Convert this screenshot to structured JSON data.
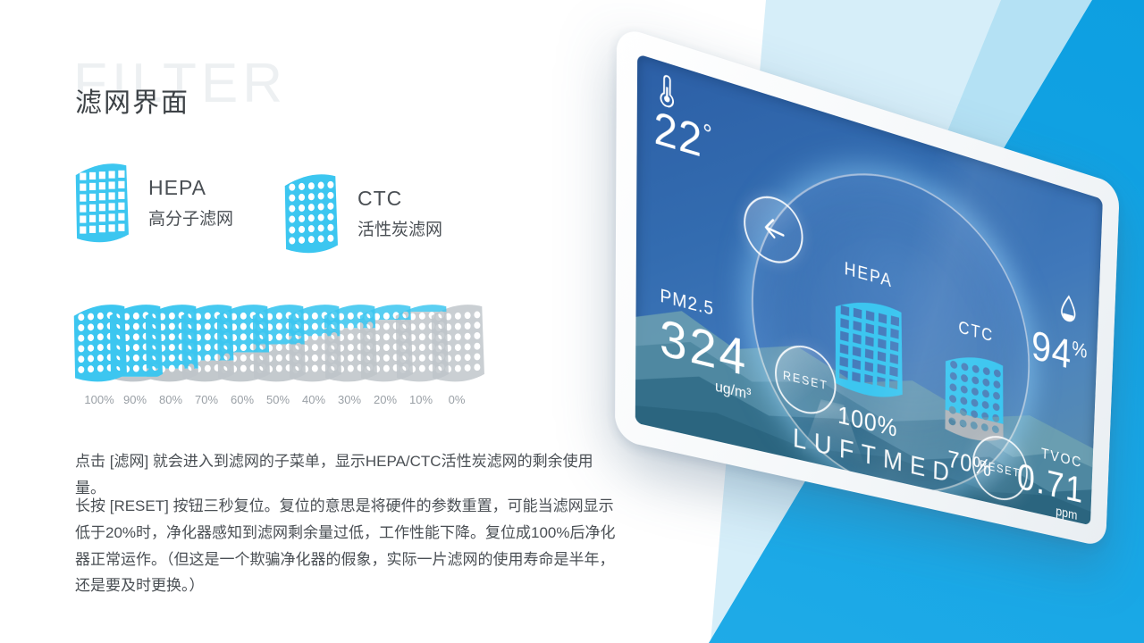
{
  "page": {
    "watermark": "FILTER",
    "title": "滤网界面"
  },
  "legend": {
    "hepa_name": "HEPA",
    "hepa_desc": "高分子滤网",
    "ctc_name": "CTC",
    "ctc_desc": "活性炭滤网"
  },
  "filter_scale": {
    "levels": [
      {
        "label": "100%",
        "fill": 100
      },
      {
        "label": "90%",
        "fill": 90
      },
      {
        "label": "80%",
        "fill": 80
      },
      {
        "label": "70%",
        "fill": 70
      },
      {
        "label": "60%",
        "fill": 60
      },
      {
        "label": "50%",
        "fill": 50
      },
      {
        "label": "40%",
        "fill": 40
      },
      {
        "label": "30%",
        "fill": 30
      },
      {
        "label": "20%",
        "fill": 20
      },
      {
        "label": "10%",
        "fill": 10
      },
      {
        "label": "0%",
        "fill": 0
      }
    ]
  },
  "paragraphs": {
    "p1": "点击 [滤网] 就会进入到滤网的子菜单，显示HEPA/CTC活性炭滤网的剩余使用量。",
    "p2": "长按 [RESET] 按钮三秒复位。复位的意思是将硬件的参数重置，可能当滤网显示低于20%时，净化器感知到滤网剩余量过低，工作性能下降。复位成100%后净化器正常运作。（但这是一个欺骗净化器的假象，实际一片滤网的使用寿命是半年，还是要及时更换。）"
  },
  "device": {
    "temperature": "22",
    "temperature_unit": "°",
    "humidity": "94",
    "humidity_unit": "%",
    "pm25_label": "PM2.5",
    "pm25_value": "324",
    "pm25_unit": "ug/m³",
    "tvoc_label": "TVOC",
    "tvoc_value": "0.71",
    "tvoc_unit": "ppm",
    "hepa_label": "HEPA",
    "hepa_percent": "100%",
    "ctc_label": "CTC",
    "ctc_percent": "70%",
    "reset_label": "RESET",
    "brand": "LUFTMED"
  },
  "filter_icons": {
    "legend_hepa": {
      "type": "square",
      "fill": 100
    },
    "legend_ctc": {
      "type": "dot",
      "fill": 100
    },
    "screen_hepa": {
      "type": "square",
      "fill": 100
    },
    "screen_ctc": {
      "type": "dot",
      "fill": 70
    }
  },
  "colors": {
    "filter_cyan": "#3cc6f0",
    "filter_gray": "#aeb5bb",
    "filter_gray_light": "#bfc5ca",
    "bright_blue": "#12a2e4",
    "pale_band": "#d6eef9",
    "mid_band": "#b4e1f4"
  }
}
